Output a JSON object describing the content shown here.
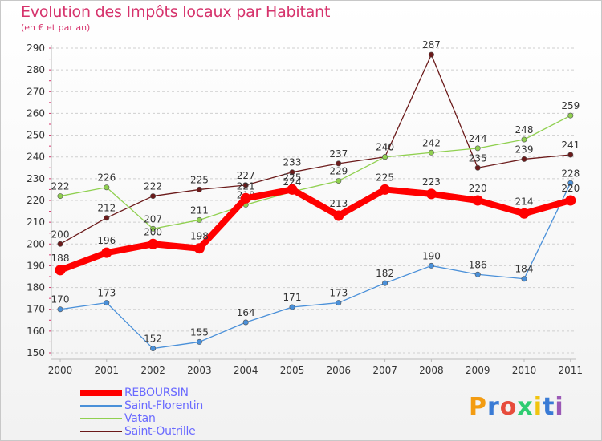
{
  "header": {
    "title": "Evolution des Impôts locaux par Habitant",
    "subtitle": "(en € et par an)"
  },
  "chart_data": {
    "type": "line",
    "x": [
      2000,
      2001,
      2002,
      2003,
      2004,
      2005,
      2006,
      2007,
      2008,
      2009,
      2010,
      2011
    ],
    "ylim": [
      150,
      290
    ],
    "yticks": [
      150,
      160,
      170,
      180,
      190,
      200,
      210,
      220,
      230,
      240,
      250,
      260,
      270,
      280,
      290
    ],
    "grid": "horizontal dashed",
    "legend_placement": "bottom-left",
    "series": [
      {
        "name": "REBOURSIN",
        "color": "#ff0000",
        "values": [
          188,
          196,
          200,
          198,
          221,
          225,
          213,
          225,
          223,
          220,
          214,
          220
        ]
      },
      {
        "name": "Saint-Florentin",
        "color": "#4a90d9",
        "values": [
          170,
          173,
          152,
          155,
          164,
          171,
          173,
          182,
          190,
          186,
          184,
          228
        ]
      },
      {
        "name": "Vatan",
        "color": "#90d050",
        "values": [
          222,
          226,
          207,
          211,
          218,
          224,
          229,
          240,
          242,
          244,
          248,
          259
        ]
      },
      {
        "name": "Saint-Outrille",
        "color": "#6b1a1a",
        "values": [
          200,
          212,
          222,
          225,
          227,
          233,
          237,
          240,
          287,
          235,
          239,
          241
        ]
      }
    ]
  },
  "logo": {
    "letters": [
      "P",
      "r",
      "o",
      "x",
      "i",
      "t",
      "i"
    ],
    "colors": [
      "#f39c12",
      "#3a7bd5",
      "#e74c3c",
      "#2ecc71",
      "#f1c40f",
      "#3a7bd5",
      "#9b59b6"
    ]
  }
}
